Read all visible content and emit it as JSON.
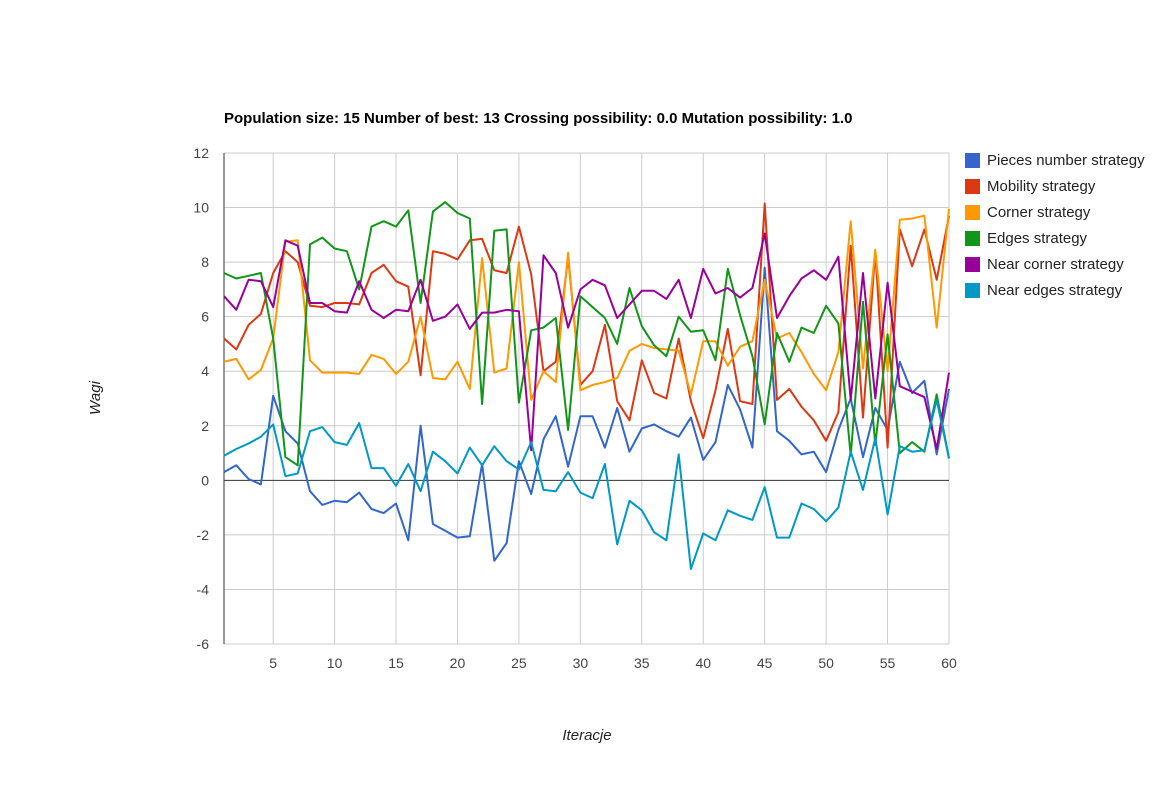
{
  "chart_data": {
    "type": "line",
    "title": "Population size: 15 Number of best: 13 Crossing possibility: 0.0 Mutation possibility: 1.0",
    "xlabel": "Iteracje",
    "ylabel": "Wagi",
    "xlim": [
      1,
      60
    ],
    "ylim": [
      -6,
      12
    ],
    "x_ticks": [
      5,
      10,
      15,
      20,
      25,
      30,
      35,
      40,
      45,
      50,
      55,
      60
    ],
    "y_ticks": [
      -6,
      -4,
      -2,
      0,
      2,
      4,
      6,
      8,
      10,
      12
    ],
    "grid": true,
    "legend_position": "right",
    "x": [
      1,
      2,
      3,
      4,
      5,
      6,
      7,
      8,
      9,
      10,
      11,
      12,
      13,
      14,
      15,
      16,
      17,
      18,
      19,
      20,
      21,
      22,
      23,
      24,
      25,
      26,
      27,
      28,
      29,
      30,
      31,
      32,
      33,
      34,
      35,
      36,
      37,
      38,
      39,
      40,
      41,
      42,
      43,
      44,
      45,
      46,
      47,
      48,
      49,
      50,
      51,
      52,
      53,
      54,
      55,
      56,
      57,
      58,
      59,
      60
    ],
    "series": [
      {
        "name": "Pieces number strategy",
        "color": "#3366cc",
        "values": [
          0.3,
          0.55,
          0.05,
          -0.15,
          3.1,
          1.8,
          1.35,
          -0.4,
          -0.9,
          -0.75,
          -0.8,
          -0.45,
          -1.05,
          -1.2,
          -0.85,
          -2.2,
          2.0,
          -1.6,
          -1.85,
          -2.1,
          -2.05,
          0.6,
          -2.95,
          -2.3,
          0.7,
          -0.5,
          1.5,
          2.35,
          0.5,
          2.35,
          2.35,
          1.2,
          2.65,
          1.05,
          1.9,
          2.05,
          1.8,
          1.6,
          2.3,
          0.75,
          1.4,
          3.5,
          2.6,
          1.2,
          7.8,
          1.8,
          1.45,
          0.95,
          1.05,
          0.3,
          1.85,
          3.0,
          0.85,
          2.65,
          1.85,
          4.35,
          3.2,
          3.65,
          0.95,
          3.35
        ]
      },
      {
        "name": "Mobility strategy",
        "color": "#dc3912",
        "values": [
          5.2,
          4.8,
          5.7,
          6.1,
          7.6,
          8.4,
          8.0,
          6.4,
          6.35,
          6.5,
          6.5,
          6.45,
          7.6,
          7.9,
          7.3,
          7.1,
          3.85,
          8.4,
          8.3,
          8.1,
          8.8,
          8.85,
          7.7,
          7.6,
          9.3,
          7.55,
          4.0,
          4.35,
          8.2,
          3.5,
          4.0,
          5.7,
          2.9,
          2.2,
          4.4,
          3.2,
          3.0,
          5.2,
          2.9,
          1.55,
          3.3,
          5.55,
          2.9,
          2.8,
          10.15,
          2.95,
          3.35,
          2.7,
          2.2,
          1.45,
          2.5,
          8.6,
          2.3,
          8.4,
          1.2,
          9.2,
          7.85,
          9.2,
          7.35,
          9.7
        ]
      },
      {
        "name": "Corner strategy",
        "color": "#ff9900",
        "values": [
          4.35,
          4.45,
          3.7,
          4.05,
          5.2,
          8.75,
          8.8,
          4.4,
          3.95,
          3.95,
          3.95,
          3.9,
          4.6,
          4.45,
          3.9,
          4.35,
          6.0,
          3.75,
          3.7,
          4.35,
          3.35,
          8.15,
          3.95,
          4.1,
          8.0,
          2.95,
          4.0,
          3.6,
          8.35,
          3.3,
          3.5,
          3.6,
          3.75,
          4.75,
          5.0,
          4.85,
          4.8,
          4.75,
          3.15,
          5.1,
          5.1,
          4.2,
          4.9,
          5.1,
          7.35,
          5.2,
          5.4,
          4.7,
          3.9,
          3.3,
          4.7,
          9.5,
          4.1,
          8.45,
          4.0,
          9.55,
          9.6,
          9.7,
          5.6,
          9.95
        ]
      },
      {
        "name": "Edges strategy",
        "color": "#109618",
        "values": [
          7.6,
          7.4,
          7.5,
          7.6,
          5.2,
          0.85,
          0.55,
          8.65,
          8.9,
          8.5,
          8.4,
          7.0,
          9.3,
          9.5,
          9.3,
          9.9,
          6.5,
          9.85,
          10.2,
          9.8,
          9.6,
          2.8,
          9.15,
          9.2,
          2.85,
          5.5,
          5.6,
          5.95,
          1.85,
          6.75,
          6.35,
          5.95,
          5.0,
          7.05,
          5.65,
          4.95,
          4.55,
          6.0,
          5.45,
          5.5,
          4.4,
          7.75,
          6.05,
          4.55,
          2.05,
          5.4,
          4.35,
          5.6,
          5.4,
          6.4,
          5.75,
          0.9,
          6.55,
          1.3,
          5.35,
          1.0,
          1.4,
          1.05,
          3.15,
          0.8
        ]
      },
      {
        "name": "Near corner strategy",
        "color": "#990099",
        "values": [
          6.75,
          6.25,
          7.35,
          7.3,
          6.35,
          8.8,
          8.6,
          6.5,
          6.5,
          6.2,
          6.15,
          7.3,
          6.25,
          5.95,
          6.25,
          6.2,
          7.35,
          5.85,
          6.0,
          6.45,
          5.55,
          6.15,
          6.15,
          6.25,
          6.2,
          1.1,
          8.25,
          7.6,
          5.6,
          7.0,
          7.35,
          7.15,
          5.95,
          6.45,
          6.95,
          6.95,
          6.65,
          7.35,
          5.95,
          7.75,
          6.85,
          7.05,
          6.7,
          7.05,
          9.05,
          5.95,
          6.75,
          7.4,
          7.7,
          7.35,
          8.2,
          2.95,
          7.6,
          3.0,
          7.25,
          3.45,
          3.25,
          3.05,
          1.15,
          3.95
        ]
      },
      {
        "name": "Near edges strategy",
        "color": "#0099c6",
        "values": [
          0.9,
          1.15,
          1.35,
          1.6,
          2.05,
          0.15,
          0.25,
          1.8,
          1.95,
          1.4,
          1.3,
          2.1,
          0.45,
          0.45,
          -0.2,
          0.6,
          -0.4,
          1.05,
          0.7,
          0.25,
          1.2,
          0.55,
          1.25,
          0.7,
          0.4,
          1.4,
          -0.35,
          -0.4,
          0.3,
          -0.45,
          -0.65,
          0.6,
          -2.35,
          -0.75,
          -1.1,
          -1.9,
          -2.2,
          0.95,
          -3.25,
          -1.95,
          -2.2,
          -1.1,
          -1.3,
          -1.45,
          -0.25,
          -2.1,
          -2.1,
          -0.85,
          -1.05,
          -1.5,
          -1.0,
          1.05,
          -0.35,
          1.55,
          -1.25,
          1.25,
          1.05,
          1.1,
          2.95,
          0.8
        ]
      }
    ]
  }
}
